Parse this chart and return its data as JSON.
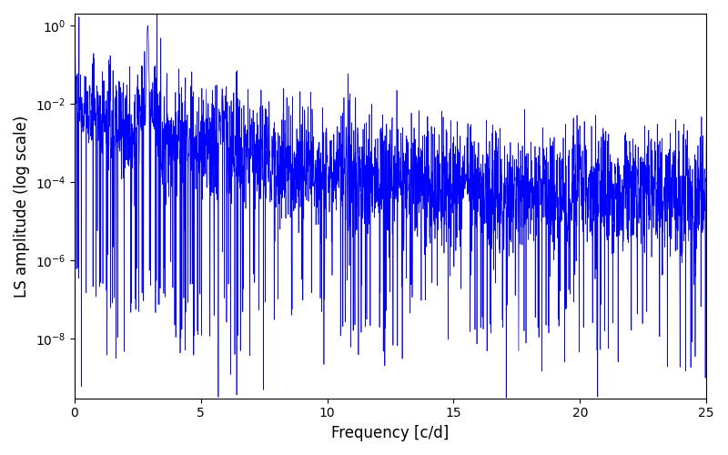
{
  "xlabel": "Frequency [c/d]",
  "ylabel": "LS amplitude (log scale)",
  "line_color": "#0000ff",
  "xlim": [
    0,
    25
  ],
  "ylim": [
    3e-10,
    2.0
  ],
  "freq_min": 0.0,
  "freq_max": 25.0,
  "n_points": 3000,
  "seed": 12345,
  "background_color": "#ffffff",
  "figsize": [
    8.0,
    5.0
  ],
  "dpi": 100
}
